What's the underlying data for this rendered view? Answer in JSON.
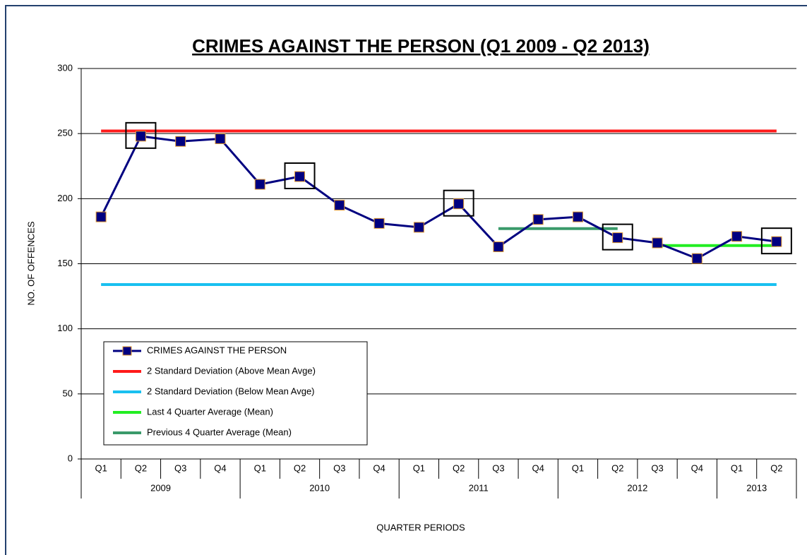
{
  "chart_data": {
    "type": "line",
    "title": "CRIMES AGAINST THE PERSON (Q1 2009 - Q2 2013)",
    "x_label": "QUARTER PERIODS",
    "y_label": "NO. OF OFFENCES",
    "categories": [
      "Q1",
      "Q2",
      "Q3",
      "Q4",
      "Q1",
      "Q2",
      "Q3",
      "Q4",
      "Q1",
      "Q2",
      "Q3",
      "Q4",
      "Q1",
      "Q2",
      "Q3",
      "Q4",
      "Q1",
      "Q2"
    ],
    "years": [
      "2009",
      "2009",
      "2009",
      "2009",
      "2010",
      "2010",
      "2010",
      "2010",
      "2011",
      "2011",
      "2011",
      "2011",
      "2012",
      "2012",
      "2012",
      "2012",
      "2013",
      "2013"
    ],
    "series": [
      {
        "name": "CRIMES AGAINST THE PERSON",
        "color": "#000080",
        "marker_edge": "#e39a2e",
        "marker": true,
        "values": [
          186,
          248,
          244,
          246,
          211,
          217,
          195,
          181,
          178,
          196,
          163,
          184,
          186,
          170,
          166,
          154,
          171,
          167
        ]
      },
      {
        "name": "2 Standard Deviation (Above Mean Avge)",
        "color": "#ff1a1a",
        "values": [
          252,
          252,
          252,
          252,
          252,
          252,
          252,
          252,
          252,
          252,
          252,
          252,
          252,
          252,
          252,
          252,
          252,
          252
        ]
      },
      {
        "name": "2 Standard Deviation (Below Mean Avge)",
        "color": "#19c0f0",
        "values": [
          134,
          134,
          134,
          134,
          134,
          134,
          134,
          134,
          134,
          134,
          134,
          134,
          134,
          134,
          134,
          134,
          134,
          134
        ]
      },
      {
        "name": "Last 4 Quarter Average (Mean)",
        "color": "#22ee22",
        "values": [
          null,
          null,
          null,
          null,
          null,
          null,
          null,
          null,
          null,
          null,
          null,
          null,
          null,
          null,
          164,
          164,
          164,
          164
        ]
      },
      {
        "name": "Previous 4 Quarter Average (Mean)",
        "color": "#3a9a6a",
        "values": [
          null,
          null,
          null,
          null,
          null,
          null,
          null,
          null,
          null,
          null,
          177,
          177,
          177,
          177,
          null,
          null,
          null,
          null
        ]
      }
    ],
    "highlighted_points": [
      1,
      5,
      9,
      13,
      17
    ],
    "ylim": [
      0,
      300
    ],
    "yticks": [
      0,
      50,
      100,
      150,
      200,
      250,
      300
    ],
    "grid": true
  }
}
